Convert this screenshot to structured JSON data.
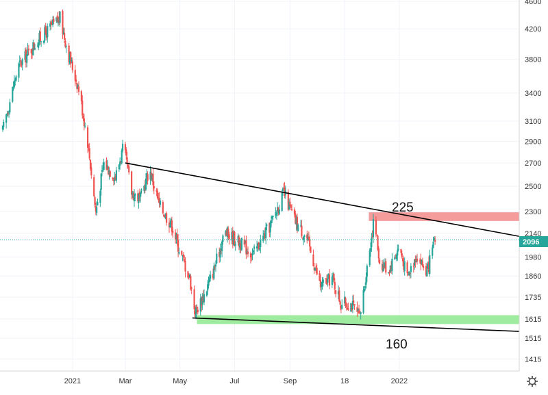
{
  "chart_data": {
    "type": "candlestick",
    "scale": "log",
    "ylim": [
      1360,
      4620
    ],
    "y_ticks": [
      "4600",
      "4200",
      "3800",
      "3400",
      "3100",
      "2900",
      "2700",
      "2500",
      "2300",
      "2140",
      "1980",
      "1860",
      "1735",
      "1615",
      "1515",
      "1415"
    ],
    "x_ticks": [
      "2021",
      "Mar",
      "May",
      "Jul",
      "Sep",
      "18",
      "2022"
    ],
    "last_price": "2096",
    "colors": {
      "up": "#26a69a",
      "down": "#ef5350",
      "resistance_zone": "#f28b8b",
      "support_zone": "#8ee88e",
      "trendline": "#000000",
      "last_price": "#26a69a"
    },
    "zones": [
      {
        "name": "resistance",
        "low": 2230,
        "high": 2295
      },
      {
        "name": "support",
        "low": 1588,
        "high": 1635
      }
    ],
    "trendlines": [
      {
        "name": "upper",
        "from": [
          "2021-03-01",
          2700
        ],
        "to": [
          "2022-05-15",
          2120
        ]
      },
      {
        "name": "lower",
        "from": [
          "2021-05-15",
          1620
        ],
        "to": [
          "2022-05-15",
          1550
        ]
      }
    ],
    "annotations": [
      "225",
      "160"
    ],
    "anchors": [
      [
        "2020-10-15",
        3000
      ],
      [
        "2020-11-01",
        3700
      ],
      [
        "2020-11-20",
        4000
      ],
      [
        "2020-12-10",
        4250
      ],
      [
        "2020-12-18",
        4350
      ],
      [
        "2020-12-28",
        3850
      ],
      [
        "2021-01-08",
        3450
      ],
      [
        "2021-01-18",
        2900
      ],
      [
        "2021-01-27",
        2300
      ],
      [
        "2021-02-05",
        2700
      ],
      [
        "2021-02-18",
        2580
      ],
      [
        "2021-02-27",
        2850
      ],
      [
        "2021-03-08",
        2450
      ],
      [
        "2021-03-18",
        2400
      ],
      [
        "2021-03-28",
        2650
      ],
      [
        "2021-04-08",
        2350
      ],
      [
        "2021-04-22",
        2200
      ],
      [
        "2021-05-02",
        2000
      ],
      [
        "2021-05-12",
        1850
      ],
      [
        "2021-05-18",
        1650
      ],
      [
        "2021-05-28",
        1750
      ],
      [
        "2021-06-08",
        1900
      ],
      [
        "2021-06-20",
        2150
      ],
      [
        "2021-07-02",
        2100
      ],
      [
        "2021-07-22",
        2000
      ],
      [
        "2021-08-10",
        2200
      ],
      [
        "2021-08-25",
        2450
      ],
      [
        "2021-09-05",
        2250
      ],
      [
        "2021-09-20",
        2100
      ],
      [
        "2021-10-05",
        1800
      ],
      [
        "2021-10-18",
        1850
      ],
      [
        "2021-10-28",
        1700
      ],
      [
        "2021-11-08",
        1700
      ],
      [
        "2021-11-18",
        1620
      ],
      [
        "2021-11-28",
        2000
      ],
      [
        "2021-12-04",
        2250
      ],
      [
        "2021-12-10",
        1950
      ],
      [
        "2021-12-20",
        1900
      ],
      [
        "2022-01-01",
        2050
      ],
      [
        "2022-01-10",
        1850
      ],
      [
        "2022-01-20",
        2000
      ],
      [
        "2022-02-01",
        1880
      ],
      [
        "2022-02-10",
        2096
      ]
    ]
  }
}
